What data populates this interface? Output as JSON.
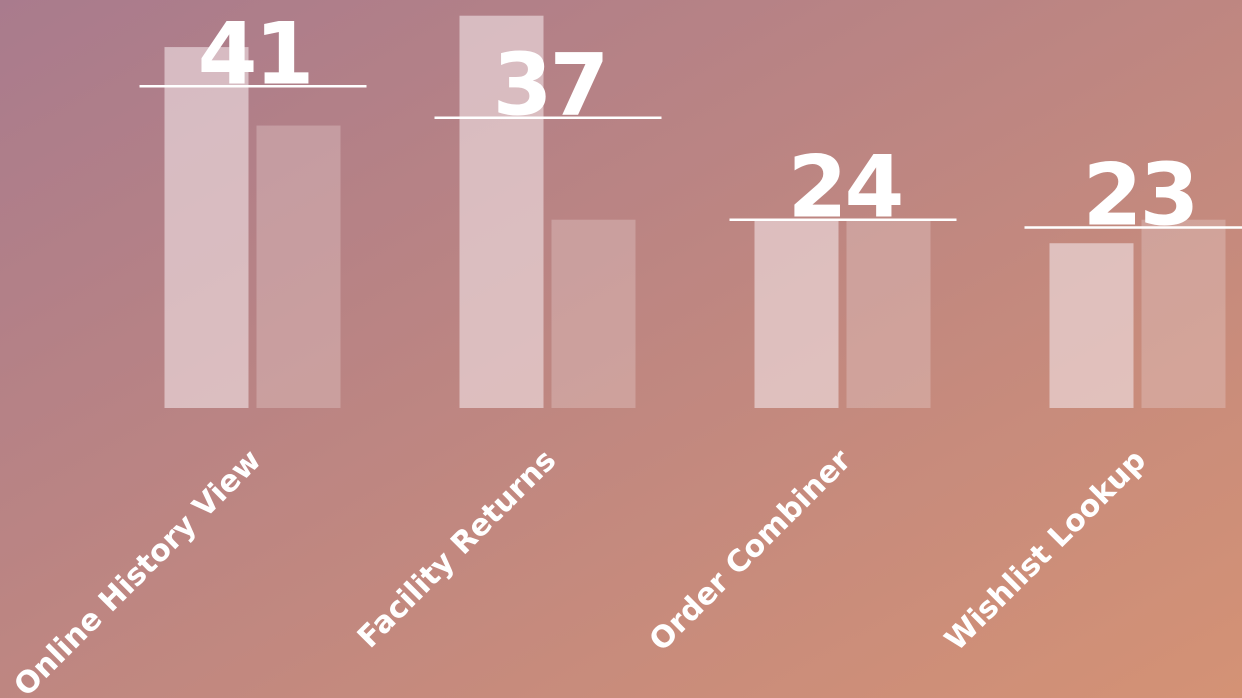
{
  "chart_data": {
    "type": "bar",
    "categories": [
      "Online History View",
      "Facility Returns",
      "Order Combiner",
      "Wishlist Lookup"
    ],
    "series": [
      {
        "color": "#f2e4e8",
        "values": [
          46,
          50,
          24,
          21
        ]
      },
      {
        "color": "#e8d0d2",
        "values": [
          36,
          24,
          24,
          24
        ]
      }
    ],
    "markers": [
      41,
      37,
      24,
      23
    ],
    "ylim": [
      0,
      52
    ]
  }
}
